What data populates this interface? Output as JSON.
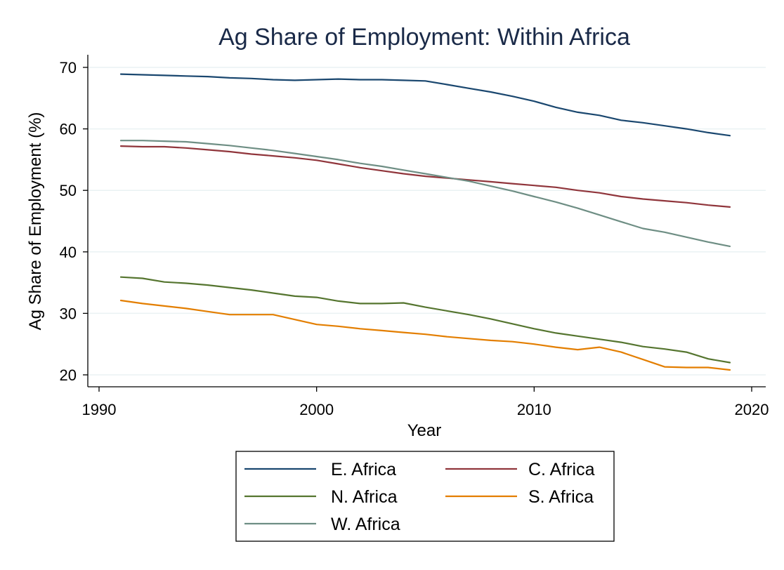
{
  "chart_data": {
    "type": "line",
    "title": "Ag Share of Employment: Within Africa",
    "xlabel": "Year",
    "ylabel": "Ag Share of Employment (%)",
    "xlim": [
      1990,
      2020
    ],
    "ylim": [
      20,
      70
    ],
    "xticks": [
      1990,
      2000,
      2010,
      2020
    ],
    "yticks": [
      20,
      30,
      40,
      50,
      60,
      70
    ],
    "grid": "horizontal",
    "legend_position": "bottom",
    "x": [
      1991,
      1992,
      1993,
      1994,
      1995,
      1996,
      1997,
      1998,
      1999,
      2000,
      2001,
      2002,
      2003,
      2004,
      2005,
      2006,
      2007,
      2008,
      2009,
      2010,
      2011,
      2012,
      2013,
      2014,
      2015,
      2016,
      2017,
      2018,
      2019
    ],
    "series": [
      {
        "name": "E. Africa",
        "color": "#1a476f",
        "values": [
          68.9,
          68.8,
          68.7,
          68.6,
          68.5,
          68.3,
          68.2,
          68.0,
          67.9,
          68.0,
          68.1,
          68.0,
          68.0,
          67.9,
          67.8,
          67.2,
          66.6,
          66.0,
          65.3,
          64.5,
          63.5,
          62.7,
          62.2,
          61.4,
          61.0,
          60.5,
          60.0,
          59.4,
          58.9
        ]
      },
      {
        "name": "C. Africa",
        "color": "#90353b",
        "values": [
          57.2,
          57.1,
          57.1,
          56.9,
          56.6,
          56.3,
          55.9,
          55.6,
          55.3,
          54.9,
          54.3,
          53.7,
          53.2,
          52.7,
          52.3,
          52.0,
          51.7,
          51.4,
          51.1,
          50.8,
          50.5,
          50.0,
          49.6,
          49.0,
          48.6,
          48.3,
          48.0,
          47.6,
          47.3
        ]
      },
      {
        "name": "N. Africa",
        "color": "#55752f",
        "values": [
          35.9,
          35.7,
          35.1,
          34.9,
          34.6,
          34.2,
          33.8,
          33.3,
          32.8,
          32.6,
          32.0,
          31.6,
          31.6,
          31.7,
          31.0,
          30.4,
          29.8,
          29.1,
          28.3,
          27.5,
          26.8,
          26.3,
          25.8,
          25.3,
          24.6,
          24.2,
          23.7,
          22.6,
          22.0
        ]
      },
      {
        "name": "S. Africa",
        "color": "#e37e00",
        "values": [
          32.1,
          31.6,
          31.2,
          30.8,
          30.3,
          29.8,
          29.8,
          29.8,
          29.0,
          28.2,
          27.9,
          27.5,
          27.2,
          26.9,
          26.6,
          26.2,
          25.9,
          25.6,
          25.4,
          25.0,
          24.5,
          24.1,
          24.5,
          23.7,
          22.5,
          21.3,
          21.2,
          21.2,
          20.8
        ]
      },
      {
        "name": "W. Africa",
        "color": "#6e8e84",
        "values": [
          58.1,
          58.1,
          58.0,
          57.9,
          57.6,
          57.3,
          56.9,
          56.5,
          56.0,
          55.5,
          55.0,
          54.4,
          53.9,
          53.3,
          52.7,
          52.1,
          51.5,
          50.7,
          49.9,
          49.0,
          48.1,
          47.1,
          46.0,
          44.9,
          43.8,
          43.2,
          42.4,
          41.6,
          40.9
        ]
      }
    ]
  }
}
